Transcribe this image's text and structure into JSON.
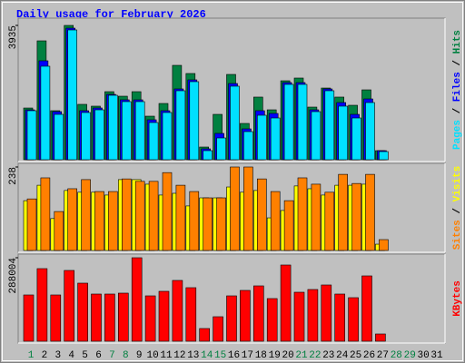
{
  "chart_data": {
    "type": "bar",
    "title": "Daily usage for February 2026",
    "categories": [
      "1",
      "2",
      "3",
      "4",
      "5",
      "6",
      "7",
      "8",
      "9",
      "10",
      "11",
      "12",
      "13",
      "14",
      "15",
      "16",
      "17",
      "18",
      "19",
      "20",
      "21",
      "22",
      "23",
      "24",
      "25",
      "26",
      "27",
      "28",
      "29",
      "30",
      "31"
    ],
    "label_colors": [
      "#008040",
      "#000000",
      "#000000",
      "#000000",
      "#000000",
      "#000000",
      "#008040",
      "#008040",
      "#000000",
      "#000000",
      "#000000",
      "#000000",
      "#000000",
      "#008040",
      "#008040",
      "#000000",
      "#000000",
      "#000000",
      "#000000",
      "#000000",
      "#008040",
      "#008040",
      "#000000",
      "#000000",
      "#000000",
      "#000000",
      "#000000",
      "#008040",
      "#008040",
      "#000000",
      "#000000"
    ],
    "legend_separator": " / ",
    "panels": [
      {
        "ylim": [
          0,
          3935
        ],
        "yticks": [
          3935
        ],
        "series": [
          {
            "name": "Hits",
            "color": "#008040",
            "values": [
              1515,
              3483,
              1436,
              3935,
              1622,
              1569,
              1994,
              1861,
              1994,
              1276,
              1648,
              2765,
              2526,
              372,
              1329,
              2499,
              1063,
              1835,
              1462,
              2313,
              2393,
              1542,
              2100,
              1835,
              1595,
              2047,
              266,
              null,
              null,
              null,
              null
            ]
          },
          {
            "name": "Files",
            "color": "#0000ff",
            "values": [
              1462,
              2898,
              1409,
              3855,
              1436,
              1516,
              1914,
              1755,
              1755,
              1170,
              1436,
              2074,
              2340,
              319,
              771,
              2233,
              904,
              1436,
              1356,
              2260,
              2260,
              1462,
              2074,
              1675,
              1329,
              1781,
              266,
              null,
              null,
              null,
              null
            ]
          },
          {
            "name": "Pages",
            "color": "#00e0ff",
            "values": [
              1436,
              2739,
              1329,
              3802,
              1383,
              1462,
              1888,
              1702,
              1702,
              1090,
              1383,
              2021,
              2287,
              266,
              638,
              2154,
              824,
              1303,
              1223,
              2207,
              2207,
              1409,
              2021,
              1569,
              1223,
              1675,
              239,
              null,
              null,
              null,
              null
            ]
          }
        ]
      },
      {
        "ylim": [
          0,
          238
        ],
        "yticks": [
          238
        ],
        "series": [
          {
            "name": "Visits",
            "color": "#ffff00",
            "values": [
              142,
              186,
              91,
              171,
              166,
              166,
              158,
              202,
              202,
              189,
              158,
              163,
              127,
              150,
              150,
              181,
              166,
              171,
              93,
              114,
              184,
              176,
              158,
              186,
              186,
              189,
              18,
              null,
              null,
              null,
              null
            ]
          },
          {
            "name": "Sites",
            "color": "#ff8000",
            "values": [
              147,
              207,
              111,
              176,
              202,
              168,
              168,
              204,
              197,
              197,
              222,
              186,
              168,
              150,
              150,
              238,
              238,
              204,
              168,
              142,
              207,
              189,
              166,
              217,
              191,
              217,
              31,
              null,
              null,
              null,
              null
            ]
          }
        ]
      },
      {
        "ylim": [
          0,
          288004
        ],
        "yticks": [
          288004
        ],
        "series": [
          {
            "name": "KBytes",
            "color": "#ff0000",
            "values": [
              159656,
              250443,
              159656,
              244182,
              200354,
              162787,
              162787,
              165918,
              288004,
              156526,
              172178,
              209744,
              184701,
              43828,
              84525,
              156526,
              175309,
              190962,
              147136,
              262962,
              169049,
              178440,
              194093,
              162787,
              150265,
              225397,
              25045,
              null,
              null,
              null,
              null
            ]
          }
        ]
      }
    ]
  }
}
